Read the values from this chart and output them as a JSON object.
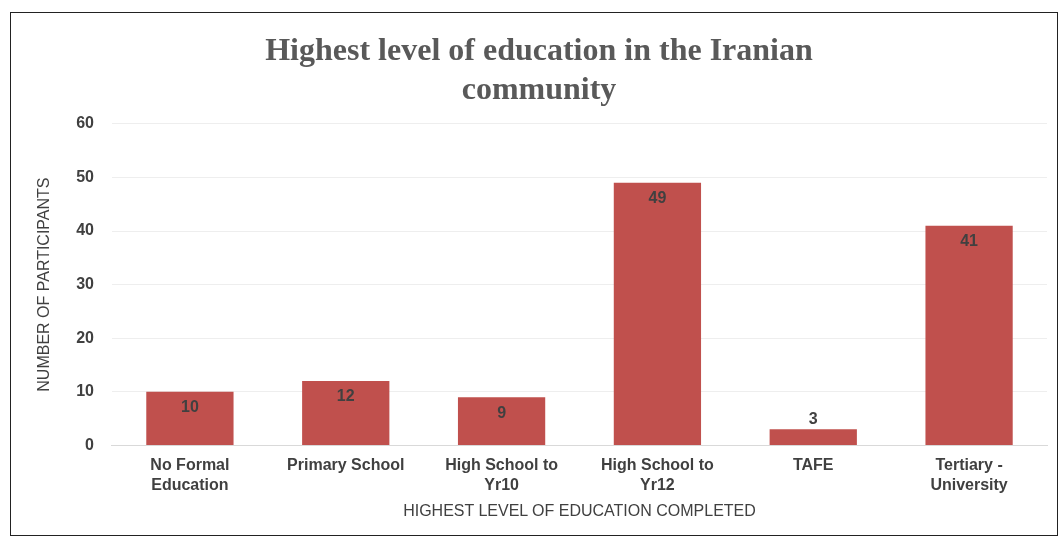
{
  "chart_data": {
    "type": "bar",
    "title": "Highest level of education in the Iranian community",
    "xlabel": "HIGHEST LEVEL OF EDUCATION COMPLETED",
    "ylabel": "NUMBER OF PARTICIPANTS",
    "categories": [
      "No Formal Education",
      "Primary School",
      "High School to Yr10",
      "High School to Yr12",
      "TAFE",
      "Tertiary - University"
    ],
    "values": [
      10,
      12,
      9,
      49,
      3,
      41
    ],
    "color": "#c0504d",
    "ylim": [
      0,
      60
    ],
    "yticks": [
      0,
      10,
      20,
      30,
      40,
      50,
      60
    ],
    "grid": "y",
    "data_labels": true
  }
}
